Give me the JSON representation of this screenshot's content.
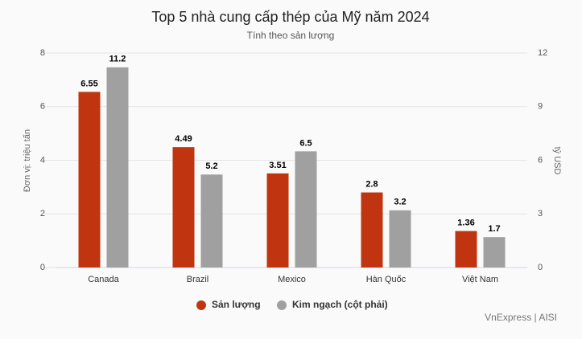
{
  "chart_data": {
    "type": "bar",
    "title": "Top 5 nhà cung cấp thép của Mỹ năm 2024",
    "subtitle": "Tính theo sản lượng",
    "ylabel": "Đơn vị: triệu tấn",
    "y2label": "tỷ USD",
    "source": "VnExpress | AISI",
    "categories": [
      "Canada",
      "Brazil",
      "Mexico",
      "Hàn Quốc",
      "Việt Nam"
    ],
    "series": [
      {
        "name": "Sản lượng",
        "color": "#c0350f",
        "values": [
          6.55,
          4.49,
          3.51,
          2.8,
          1.36
        ]
      },
      {
        "name": "Kim ngạch (cột phải)",
        "color": "#a0a0a0",
        "axis": "y2",
        "values": [
          11.2,
          5.2,
          6.5,
          3.2,
          1.7
        ]
      }
    ],
    "ylim": [
      0,
      8
    ],
    "yticks": [
      0,
      2,
      4,
      6,
      8
    ],
    "y2lim": [
      0,
      12
    ],
    "y2ticks": [
      0,
      3,
      6,
      9,
      12
    ],
    "grid": true,
    "legend": "bottom"
  }
}
